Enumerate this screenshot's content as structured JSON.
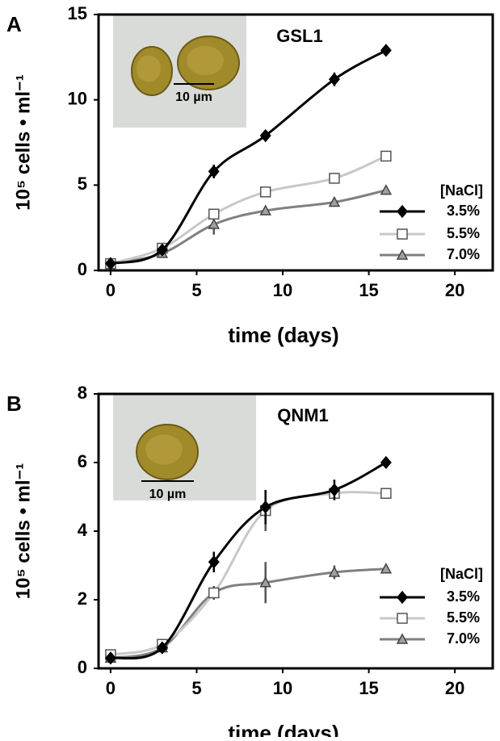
{
  "chart_data": [
    {
      "type": "line",
      "panel": "A",
      "title": "GSL1",
      "inset_label": "10 µm",
      "xlabel": "time (days)",
      "ylabel": "10⁵ cells • ml⁻¹",
      "x": [
        0,
        3,
        6,
        9,
        13,
        16
      ],
      "xlim": [
        -0.7,
        22.2
      ],
      "xticks": [
        0,
        5,
        10,
        15,
        20
      ],
      "ylim": [
        0,
        15
      ],
      "yticks": [
        0,
        5,
        10,
        15
      ],
      "legend_title": "[NaCl]",
      "series": [
        {
          "name": "3.5%",
          "color": "#000000",
          "marker": "diamond",
          "values": [
            0.4,
            1.2,
            5.8,
            7.9,
            11.2,
            12.9
          ],
          "errors": [
            null,
            null,
            0.4,
            0.3,
            0.4,
            null
          ]
        },
        {
          "name": "5.5%",
          "color": "#c8c8c8",
          "marker": "square",
          "values": [
            0.4,
            1.3,
            3.3,
            4.6,
            5.4,
            6.7
          ],
          "errors": [
            null,
            null,
            null,
            null,
            null,
            null
          ]
        },
        {
          "name": "7.0%",
          "color": "#808080",
          "marker": "triangle",
          "values": [
            0.4,
            1.0,
            2.7,
            3.5,
            4.0,
            4.7
          ],
          "errors": [
            null,
            null,
            0.6,
            null,
            null,
            null
          ]
        }
      ]
    },
    {
      "type": "line",
      "panel": "B",
      "title": "QNM1",
      "inset_label": "10 µm",
      "xlabel": "time (days)",
      "ylabel": "10⁵ cells • ml⁻¹",
      "x": [
        0,
        3,
        6,
        9,
        13,
        16
      ],
      "xlim": [
        -0.7,
        22.2
      ],
      "xticks": [
        0,
        5,
        10,
        15,
        20
      ],
      "ylim": [
        0,
        8
      ],
      "yticks": [
        0,
        2,
        4,
        6,
        8
      ],
      "legend_title": "[NaCl]",
      "series": [
        {
          "name": "3.5%",
          "color": "#000000",
          "marker": "diamond",
          "values": [
            0.3,
            0.6,
            3.1,
            4.7,
            5.2,
            6.0
          ],
          "errors": [
            null,
            null,
            0.3,
            0.5,
            0.3,
            null
          ]
        },
        {
          "name": "5.5%",
          "color": "#c8c8c8",
          "marker": "square",
          "values": [
            0.4,
            0.7,
            2.2,
            4.6,
            5.1,
            5.1
          ],
          "errors": [
            null,
            null,
            null,
            0.6,
            null,
            null
          ]
        },
        {
          "name": "7.0%",
          "color": "#808080",
          "marker": "triangle",
          "values": [
            0.3,
            0.6,
            2.2,
            2.5,
            2.8,
            2.9
          ],
          "errors": [
            null,
            null,
            0.2,
            0.6,
            0.2,
            null
          ]
        }
      ]
    }
  ]
}
